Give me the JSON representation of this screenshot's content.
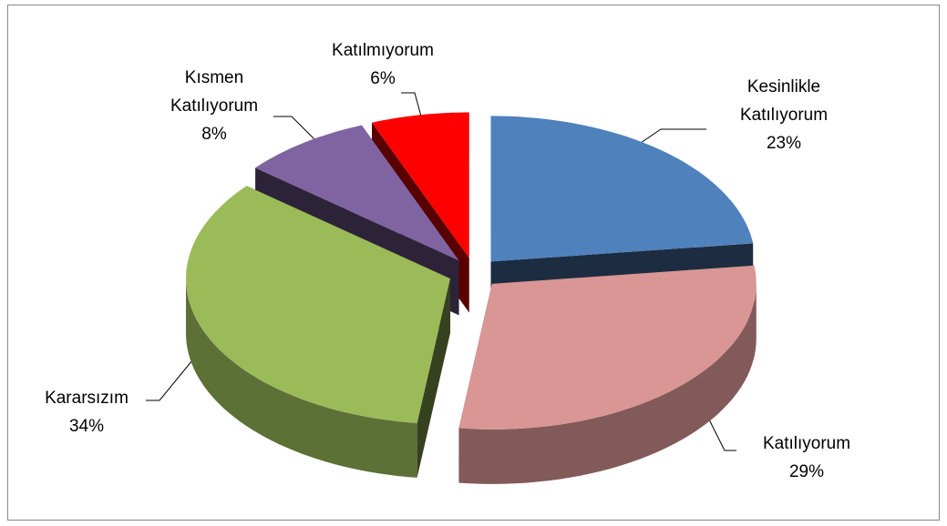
{
  "chart_data": {
    "type": "pie3d",
    "categories": [
      "Kesinlikle Katılıyorum",
      "Katılıyorum",
      "Kararsızım",
      "Kısmen Katılıyorum",
      "Katılmıyorum"
    ],
    "values": [
      23,
      29,
      34,
      8,
      6
    ],
    "value_labels": [
      "23%",
      "29%",
      "34%",
      "8%",
      "6%"
    ],
    "colors": [
      "#4f81bd",
      "#d99694",
      "#9bbb59",
      "#8064a2",
      "#ff0000"
    ]
  }
}
